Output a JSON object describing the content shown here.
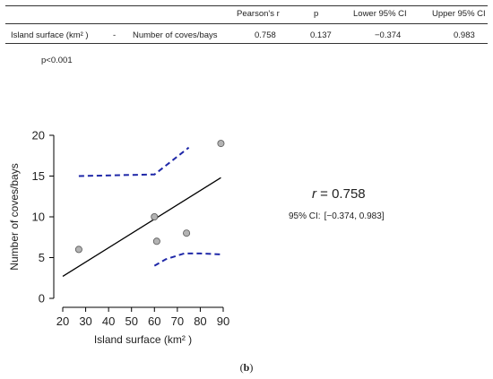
{
  "table": {
    "headers": [
      "Pearson's r",
      "p",
      "Lower 95% CI",
      "Upper 95% CI"
    ],
    "row": {
      "var1": "Island surface (km² )",
      "sep": "-",
      "var2": "Number of coves/bays",
      "r": "0.758",
      "p": "0.137",
      "lower": "−0.374",
      "upper": "0.983"
    }
  },
  "note": "p<0.001",
  "annotation": {
    "r_symbol": "r",
    "r_text": " = 0.758",
    "ci_label": "95% CI:",
    "ci_value": "[−0.374, 0.983]"
  },
  "caption": {
    "open": "(",
    "letter": "b",
    "close": ")"
  },
  "chart_data": {
    "type": "scatter",
    "xlabel": "Island surface (km² )",
    "ylabel": "Number of coves/bays",
    "xlim": [
      20,
      90
    ],
    "ylim": [
      0,
      20
    ],
    "xticks": [
      20,
      30,
      40,
      50,
      60,
      70,
      80,
      90
    ],
    "yticks": [
      0,
      5,
      10,
      15,
      20
    ],
    "points": [
      {
        "x": 27,
        "y": 6
      },
      {
        "x": 60,
        "y": 10
      },
      {
        "x": 61,
        "y": 7
      },
      {
        "x": 74,
        "y": 8
      },
      {
        "x": 89,
        "y": 19
      }
    ],
    "regression_line": {
      "x": [
        20,
        89
      ],
      "y": [
        2.7,
        14.8
      ]
    },
    "ci_upper": {
      "x": [
        27,
        60,
        66,
        75
      ],
      "y": [
        15,
        15.2,
        16.5,
        18.5
      ]
    },
    "ci_lower": {
      "x": [
        60,
        65,
        73,
        80,
        89
      ],
      "y": [
        4,
        4.8,
        5.5,
        5.5,
        5.4
      ]
    },
    "colors": {
      "points_fill": "#b3b3b3",
      "points_stroke": "#555555",
      "line": "#000000",
      "ci": "#1f28a8"
    }
  }
}
